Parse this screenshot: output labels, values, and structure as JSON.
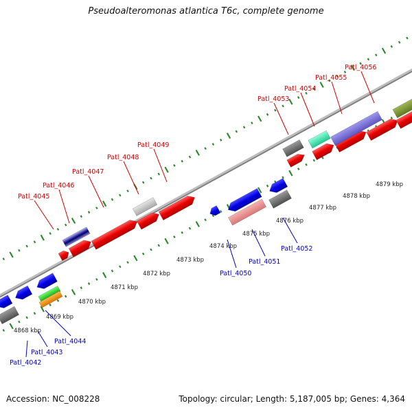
{
  "title": "Pseudoalteromonas atlantica T6c, complete genome",
  "footer": {
    "accession": "Accession: NC_008228",
    "summary": "Topology: circular; Length: 5,187,005 bp; Genes: 4,364"
  },
  "colors": {
    "forward_label": "#d40000",
    "reverse_label": "#0000cc",
    "tick": "#2e8b2e",
    "backbone": "#9a9a9a"
  },
  "kbp_labels": [
    "4868 kbp",
    "4869 kbp",
    "4870 kbp",
    "4871 kbp",
    "4872 kbp",
    "4873 kbp",
    "4874 kbp",
    "4875 kbp",
    "4876 kbp",
    "4877 kbp",
    "4878 kbp",
    "4879 kbp"
  ],
  "forward_genes": [
    "Patl_4045",
    "Patl_4046",
    "Patl_4047",
    "Patl_4048",
    "Patl_4049",
    "Patl_4053",
    "Patl_4054",
    "Patl_4055",
    "Patl_4056"
  ],
  "reverse_genes": [
    "Patl_4042",
    "Patl_4043",
    "Patl_4044",
    "Patl_4050",
    "Patl_4051",
    "Patl_4052"
  ]
}
